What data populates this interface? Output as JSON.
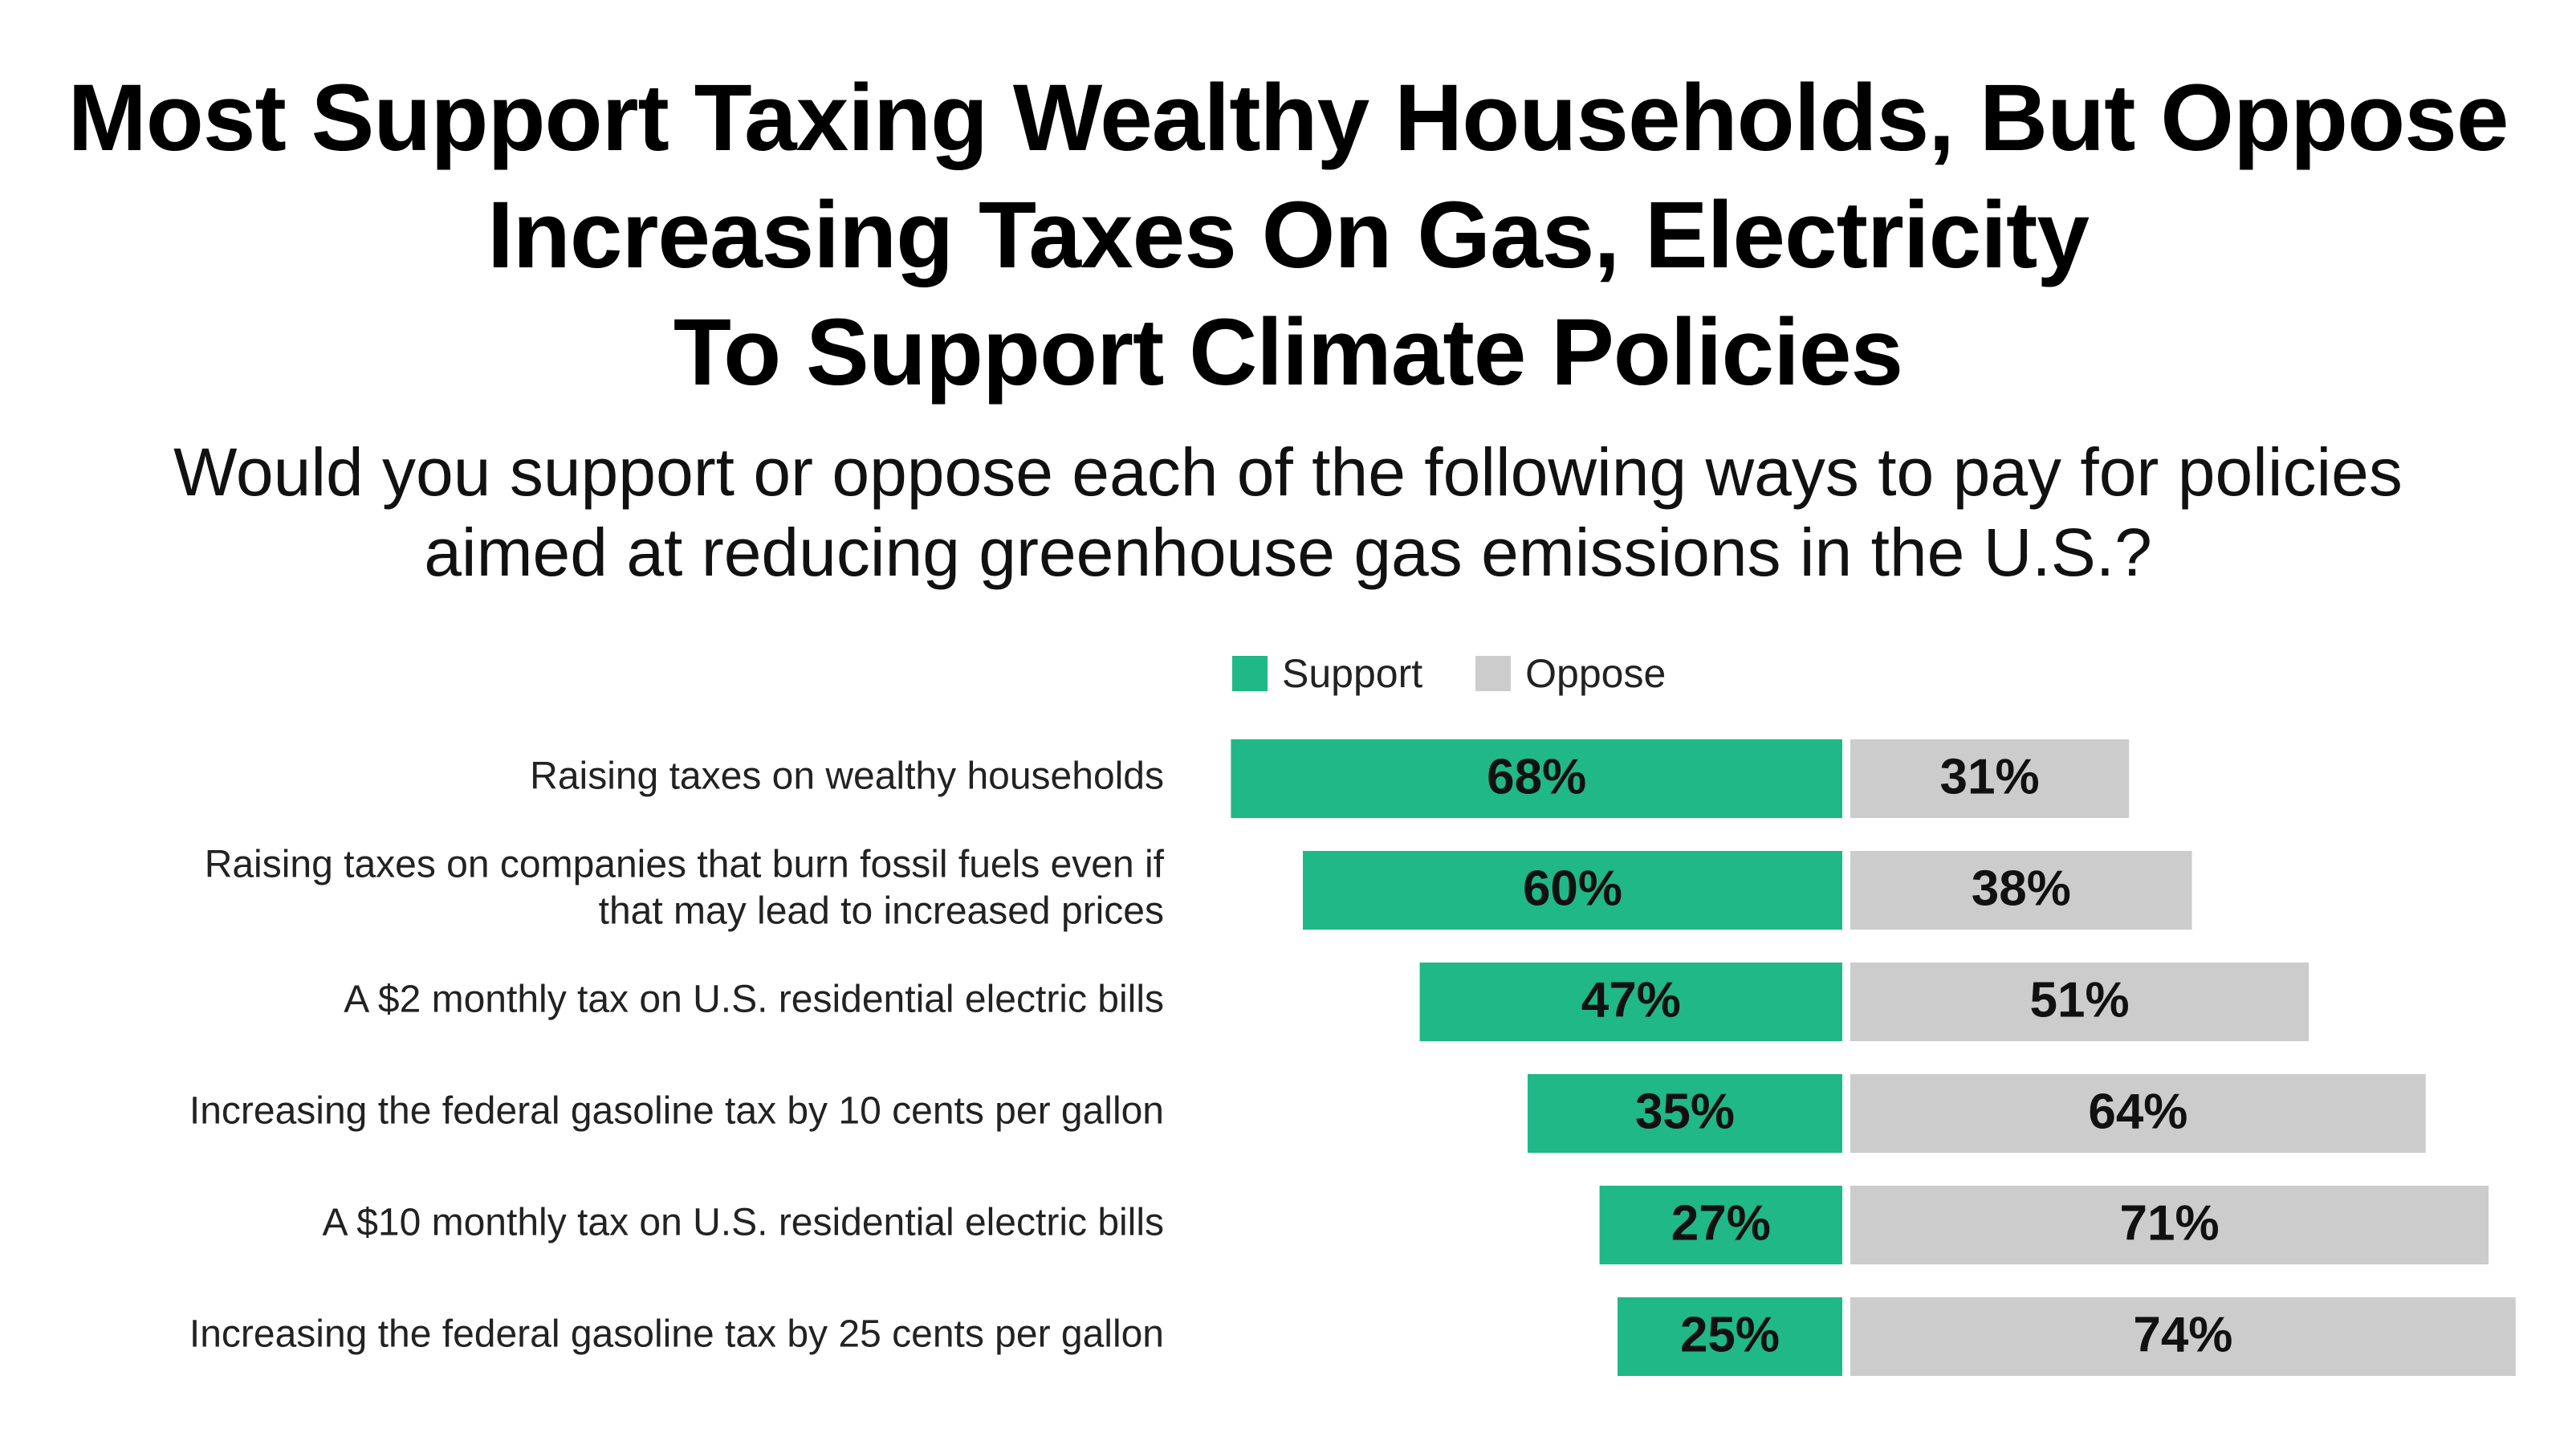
{
  "title_lines": [
    "Most Support Taxing Wealthy Households, But Oppose",
    "Increasing Taxes On Gas, Electricity",
    "To Support Climate Policies"
  ],
  "subtitle_lines": [
    "Would you support or oppose each of the following ways to pay for policies",
    "aimed at reducing greenhouse gas emissions in the U.S.?"
  ],
  "colors": {
    "support": "#20b886",
    "oppose": "#cccccc"
  },
  "chart_data": {
    "type": "bar",
    "orientation": "horizontal-diverging",
    "categories": [
      [
        "Raising taxes on wealthy households"
      ],
      [
        "Raising taxes on companies that burn fossil fuels even if",
        "that may lead to increased prices"
      ],
      [
        "A $2 monthly tax on U.S. residential electric bills"
      ],
      [
        "Increasing the federal gasoline tax by 10 cents per gallon"
      ],
      [
        "A $10 monthly tax on U.S. residential electric bills"
      ],
      [
        "Increasing the federal gasoline tax by 25 cents per gallon"
      ]
    ],
    "series": [
      {
        "name": "Support",
        "values": [
          68,
          60,
          47,
          35,
          27,
          25
        ],
        "labels": [
          "68%",
          "60%",
          "47%",
          "35%",
          "27%",
          "25%"
        ]
      },
      {
        "name": "Oppose",
        "values": [
          31,
          38,
          51,
          64,
          71,
          74
        ],
        "labels": [
          "31%",
          "38%",
          "51%",
          "64%",
          "71%",
          "74%"
        ]
      }
    ],
    "legend": [
      "Support",
      "Oppose"
    ],
    "legend_position": "top",
    "unit": "%",
    "xlim": [
      0,
      100
    ],
    "grid": false
  }
}
